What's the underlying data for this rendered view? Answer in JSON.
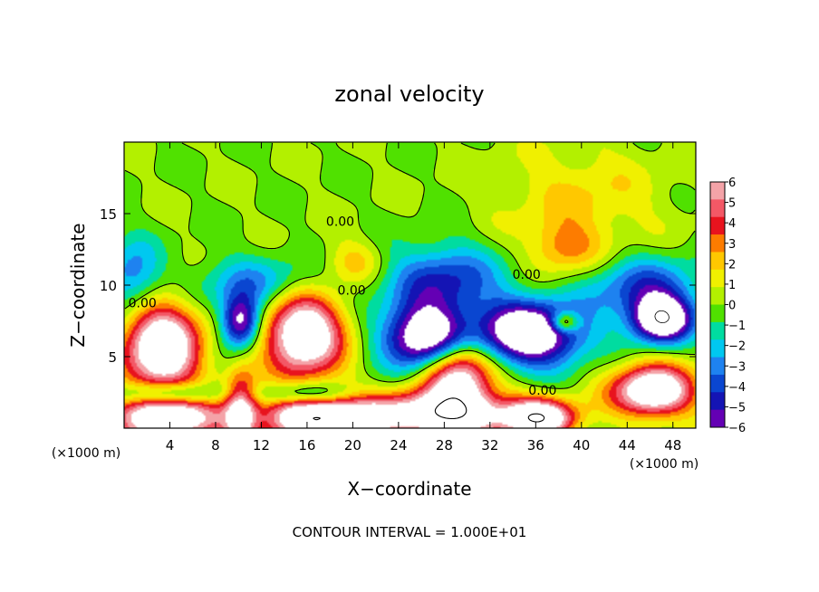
{
  "chart_data": {
    "type": "heatmap",
    "title": "zonal velocity",
    "xlabel": "X−coordinate",
    "ylabel": "Z−coordinate",
    "x_units": "(×1000 m)",
    "y_units": "(×1000 m)",
    "xlim": [
      0,
      50
    ],
    "ylim": [
      0,
      20
    ],
    "x_ticks": [
      4,
      8,
      12,
      16,
      20,
      24,
      28,
      32,
      36,
      40,
      44,
      48
    ],
    "y_ticks": [
      5,
      10,
      15
    ],
    "colorbar": {
      "ticks": [
        6,
        5,
        4,
        3,
        2,
        1,
        0,
        -1,
        -2,
        -3,
        -4,
        -5,
        -6
      ],
      "labels": [
        "6",
        "5",
        "4",
        "3",
        "2",
        "1",
        "0",
        "−1",
        "−2",
        "−3",
        "−4",
        "−5",
        "−6"
      ],
      "colors": [
        "#f4a3a8",
        "#f35866",
        "#e8131e",
        "#fd7c00",
        "#ffc800",
        "#f0f000",
        "#b3f000",
        "#50e100",
        "#00dca0",
        "#00c8f0",
        "#1e82f0",
        "#0a46d0",
        "#1414b4",
        "#6400b4"
      ]
    },
    "contour_labels": [
      {
        "text": "0.00",
        "x": 18.9,
        "y": 14.4
      },
      {
        "text": "0.00",
        "x": 1.6,
        "y": 8.7
      },
      {
        "text": "0.00",
        "x": 19.9,
        "y": 9.6
      },
      {
        "text": "0.00",
        "x": 35.2,
        "y": 10.7
      },
      {
        "text": "0.00",
        "x": 36.6,
        "y": 2.6
      }
    ],
    "blobs": [
      {
        "cx": 3.3,
        "cy": 5.6,
        "rx": 3.4,
        "ry": 3.3,
        "sign": 1,
        "amp": 9
      },
      {
        "cx": 15.7,
        "cy": 6.6,
        "rx": 3.5,
        "ry": 3.0,
        "sign": 1,
        "amp": 9
      },
      {
        "cx": 29.2,
        "cy": 3.8,
        "rx": 3.0,
        "ry": 3.0,
        "sign": 1,
        "amp": 8
      },
      {
        "cx": 26.6,
        "cy": 0.9,
        "rx": 8.0,
        "ry": 1.6,
        "sign": 1,
        "amp": 8
      },
      {
        "cx": 16.5,
        "cy": 0.7,
        "rx": 4.5,
        "ry": 1.6,
        "sign": 1,
        "amp": 8
      },
      {
        "cx": 4.0,
        "cy": 0.6,
        "rx": 5.0,
        "ry": 1.6,
        "sign": 1,
        "amp": 8
      },
      {
        "cx": 10.2,
        "cy": 1.2,
        "rx": 1.4,
        "ry": 2.8,
        "sign": 1,
        "amp": 6
      },
      {
        "cx": 46.3,
        "cy": 2.6,
        "rx": 3.6,
        "ry": 1.8,
        "sign": 1,
        "amp": 9
      },
      {
        "cx": 36.4,
        "cy": 0.7,
        "rx": 3.0,
        "ry": 1.3,
        "sign": 1,
        "amp": 8
      },
      {
        "cx": 38.5,
        "cy": 12.6,
        "rx": 3.0,
        "ry": 1.8,
        "sign": 1,
        "amp": 2.6
      },
      {
        "cx": 20.1,
        "cy": 11.6,
        "rx": 2.5,
        "ry": 1.6,
        "sign": 1,
        "amp": 2.2
      },
      {
        "cx": 40.0,
        "cy": 16.0,
        "rx": 7.0,
        "ry": 4.0,
        "sign": 1,
        "amp": 1.8
      },
      {
        "cx": 26.6,
        "cy": 6.3,
        "rx": 3.8,
        "ry": 2.2,
        "sign": -1,
        "amp": 9
      },
      {
        "cx": 35.5,
        "cy": 6.6,
        "rx": 4.6,
        "ry": 2.2,
        "sign": -1,
        "amp": 9
      },
      {
        "cx": 10.2,
        "cy": 7.4,
        "rx": 1.7,
        "ry": 1.8,
        "sign": -1,
        "amp": 7
      },
      {
        "cx": 47.0,
        "cy": 7.6,
        "rx": 2.6,
        "ry": 1.6,
        "sign": -1,
        "amp": 9
      },
      {
        "cx": 28.0,
        "cy": 10.2,
        "rx": 5.0,
        "ry": 2.6,
        "sign": -1,
        "amp": 4.5
      },
      {
        "cx": 45.5,
        "cy": 9.8,
        "rx": 5.0,
        "ry": 2.2,
        "sign": -1,
        "amp": 4.0
      },
      {
        "cx": 12.0,
        "cy": 10.0,
        "rx": 6.0,
        "ry": 2.0,
        "sign": -1,
        "amp": 3.0
      },
      {
        "cx": 0.8,
        "cy": 10.5,
        "rx": 2.5,
        "ry": 2.6,
        "sign": -1,
        "amp": 3.5
      },
      {
        "cx": 4.0,
        "cy": 2.4,
        "rx": 4.5,
        "ry": 0.8,
        "sign": -1,
        "amp": 4.5
      },
      {
        "cx": 16.0,
        "cy": 2.4,
        "rx": 4.0,
        "ry": 0.8,
        "sign": -1,
        "amp": 4.0
      },
      {
        "cx": 38.5,
        "cy": 7.4,
        "rx": 1.2,
        "ry": 0.7,
        "sign": 1,
        "amp": 5
      }
    ]
  },
  "footer": {
    "contour_interval": "CONTOUR INTERVAL = 1.000E+01"
  }
}
